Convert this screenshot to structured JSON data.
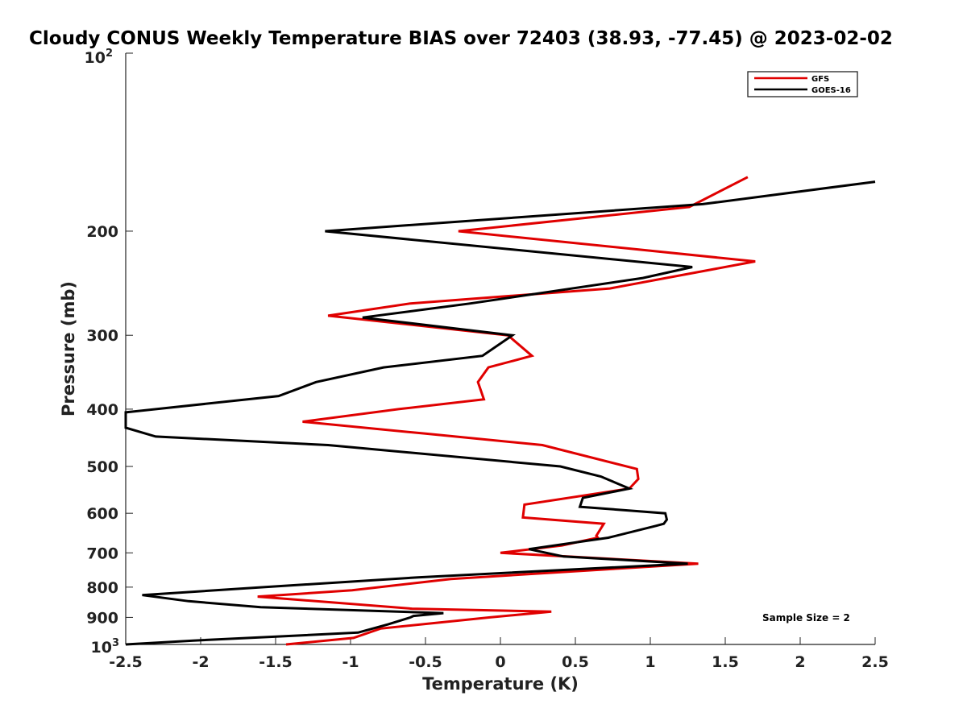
{
  "chart_data": {
    "type": "line",
    "title": "Cloudy CONUS Weekly Temperature BIAS over 72403 (38.93, -77.45) @ 2023-02-02",
    "xlabel": "Temperature (K)",
    "ylabel": "Pressure (mb)",
    "xlim": [
      -2.5,
      2.5
    ],
    "ylim": [
      100,
      1000
    ],
    "y_scale": "log",
    "y_reversed": true,
    "x_ticks": [
      "-2.5",
      "-2",
      "-1.5",
      "-1",
      "-0.5",
      "0",
      "0.5",
      "1",
      "1.5",
      "2",
      "2.5"
    ],
    "x_tick_values": [
      -2.5,
      -2,
      -1.5,
      -1,
      -0.5,
      0,
      0.5,
      1,
      1.5,
      2,
      2.5
    ],
    "y_ticks": [
      "200",
      "300",
      "400",
      "500",
      "600",
      "700",
      "800",
      "900"
    ],
    "y_tick_values": [
      200,
      300,
      400,
      500,
      600,
      700,
      800,
      900
    ],
    "y_top_label": {
      "base": "10",
      "exp": "2"
    },
    "y_bottom_label": {
      "base": "10",
      "exp": "3"
    },
    "annotation": "Sample Size = 2",
    "legend_position": "top-right",
    "grid": false,
    "series": [
      {
        "name": "GFS",
        "color": "#e00000",
        "x": [
          1.65,
          1.26,
          -0.28,
          1.7,
          0.73,
          -0.6,
          -1.15,
          0.05,
          0.21,
          -0.08,
          -0.15,
          -0.11,
          -0.68,
          -1.32,
          -0.5,
          0.28,
          0.91,
          0.92,
          0.86,
          0.16,
          0.15,
          0.69,
          0.64,
          0.65,
          0.41,
          0.0,
          1.32,
          -0.33,
          -0.99,
          -1.62,
          -0.59,
          0.34,
          -0.07,
          -0.8,
          -0.98,
          -1.43
        ],
        "y": [
          162,
          182,
          200,
          225,
          250,
          265,
          278,
          300,
          325,
          340,
          360,
          385,
          400,
          420,
          440,
          460,
          505,
          525,
          545,
          580,
          610,
          625,
          655,
          660,
          680,
          700,
          730,
          775,
          810,
          830,
          870,
          880,
          900,
          940,
          975,
          1000
        ]
      },
      {
        "name": "GOES-16",
        "color": "#000000",
        "x": [
          2.5,
          1.35,
          -1.17,
          1.28,
          0.95,
          -0.2,
          -0.92,
          0.08,
          -0.12,
          -0.78,
          -1.23,
          -1.48,
          -2.5,
          -2.5,
          -2.3,
          -1.15,
          0.4,
          0.67,
          0.86,
          0.55,
          0.53,
          1.1,
          1.11,
          1.09,
          1.04,
          0.72,
          0.19,
          0.42,
          1.25,
          -0.55,
          -1.58,
          -2.39,
          -2.08,
          -1.6,
          -0.38,
          -0.58,
          -0.6,
          -0.75,
          -0.95,
          -2.05,
          -2.5
        ],
        "y": [
          165,
          180,
          200,
          230,
          240,
          265,
          280,
          300,
          325,
          340,
          360,
          380,
          405,
          430,
          445,
          460,
          500,
          520,
          545,
          565,
          585,
          600,
          615,
          625,
          630,
          660,
          690,
          710,
          730,
          770,
          800,
          825,
          845,
          865,
          885,
          895,
          900,
          925,
          955,
          985,
          1000
        ]
      }
    ]
  }
}
